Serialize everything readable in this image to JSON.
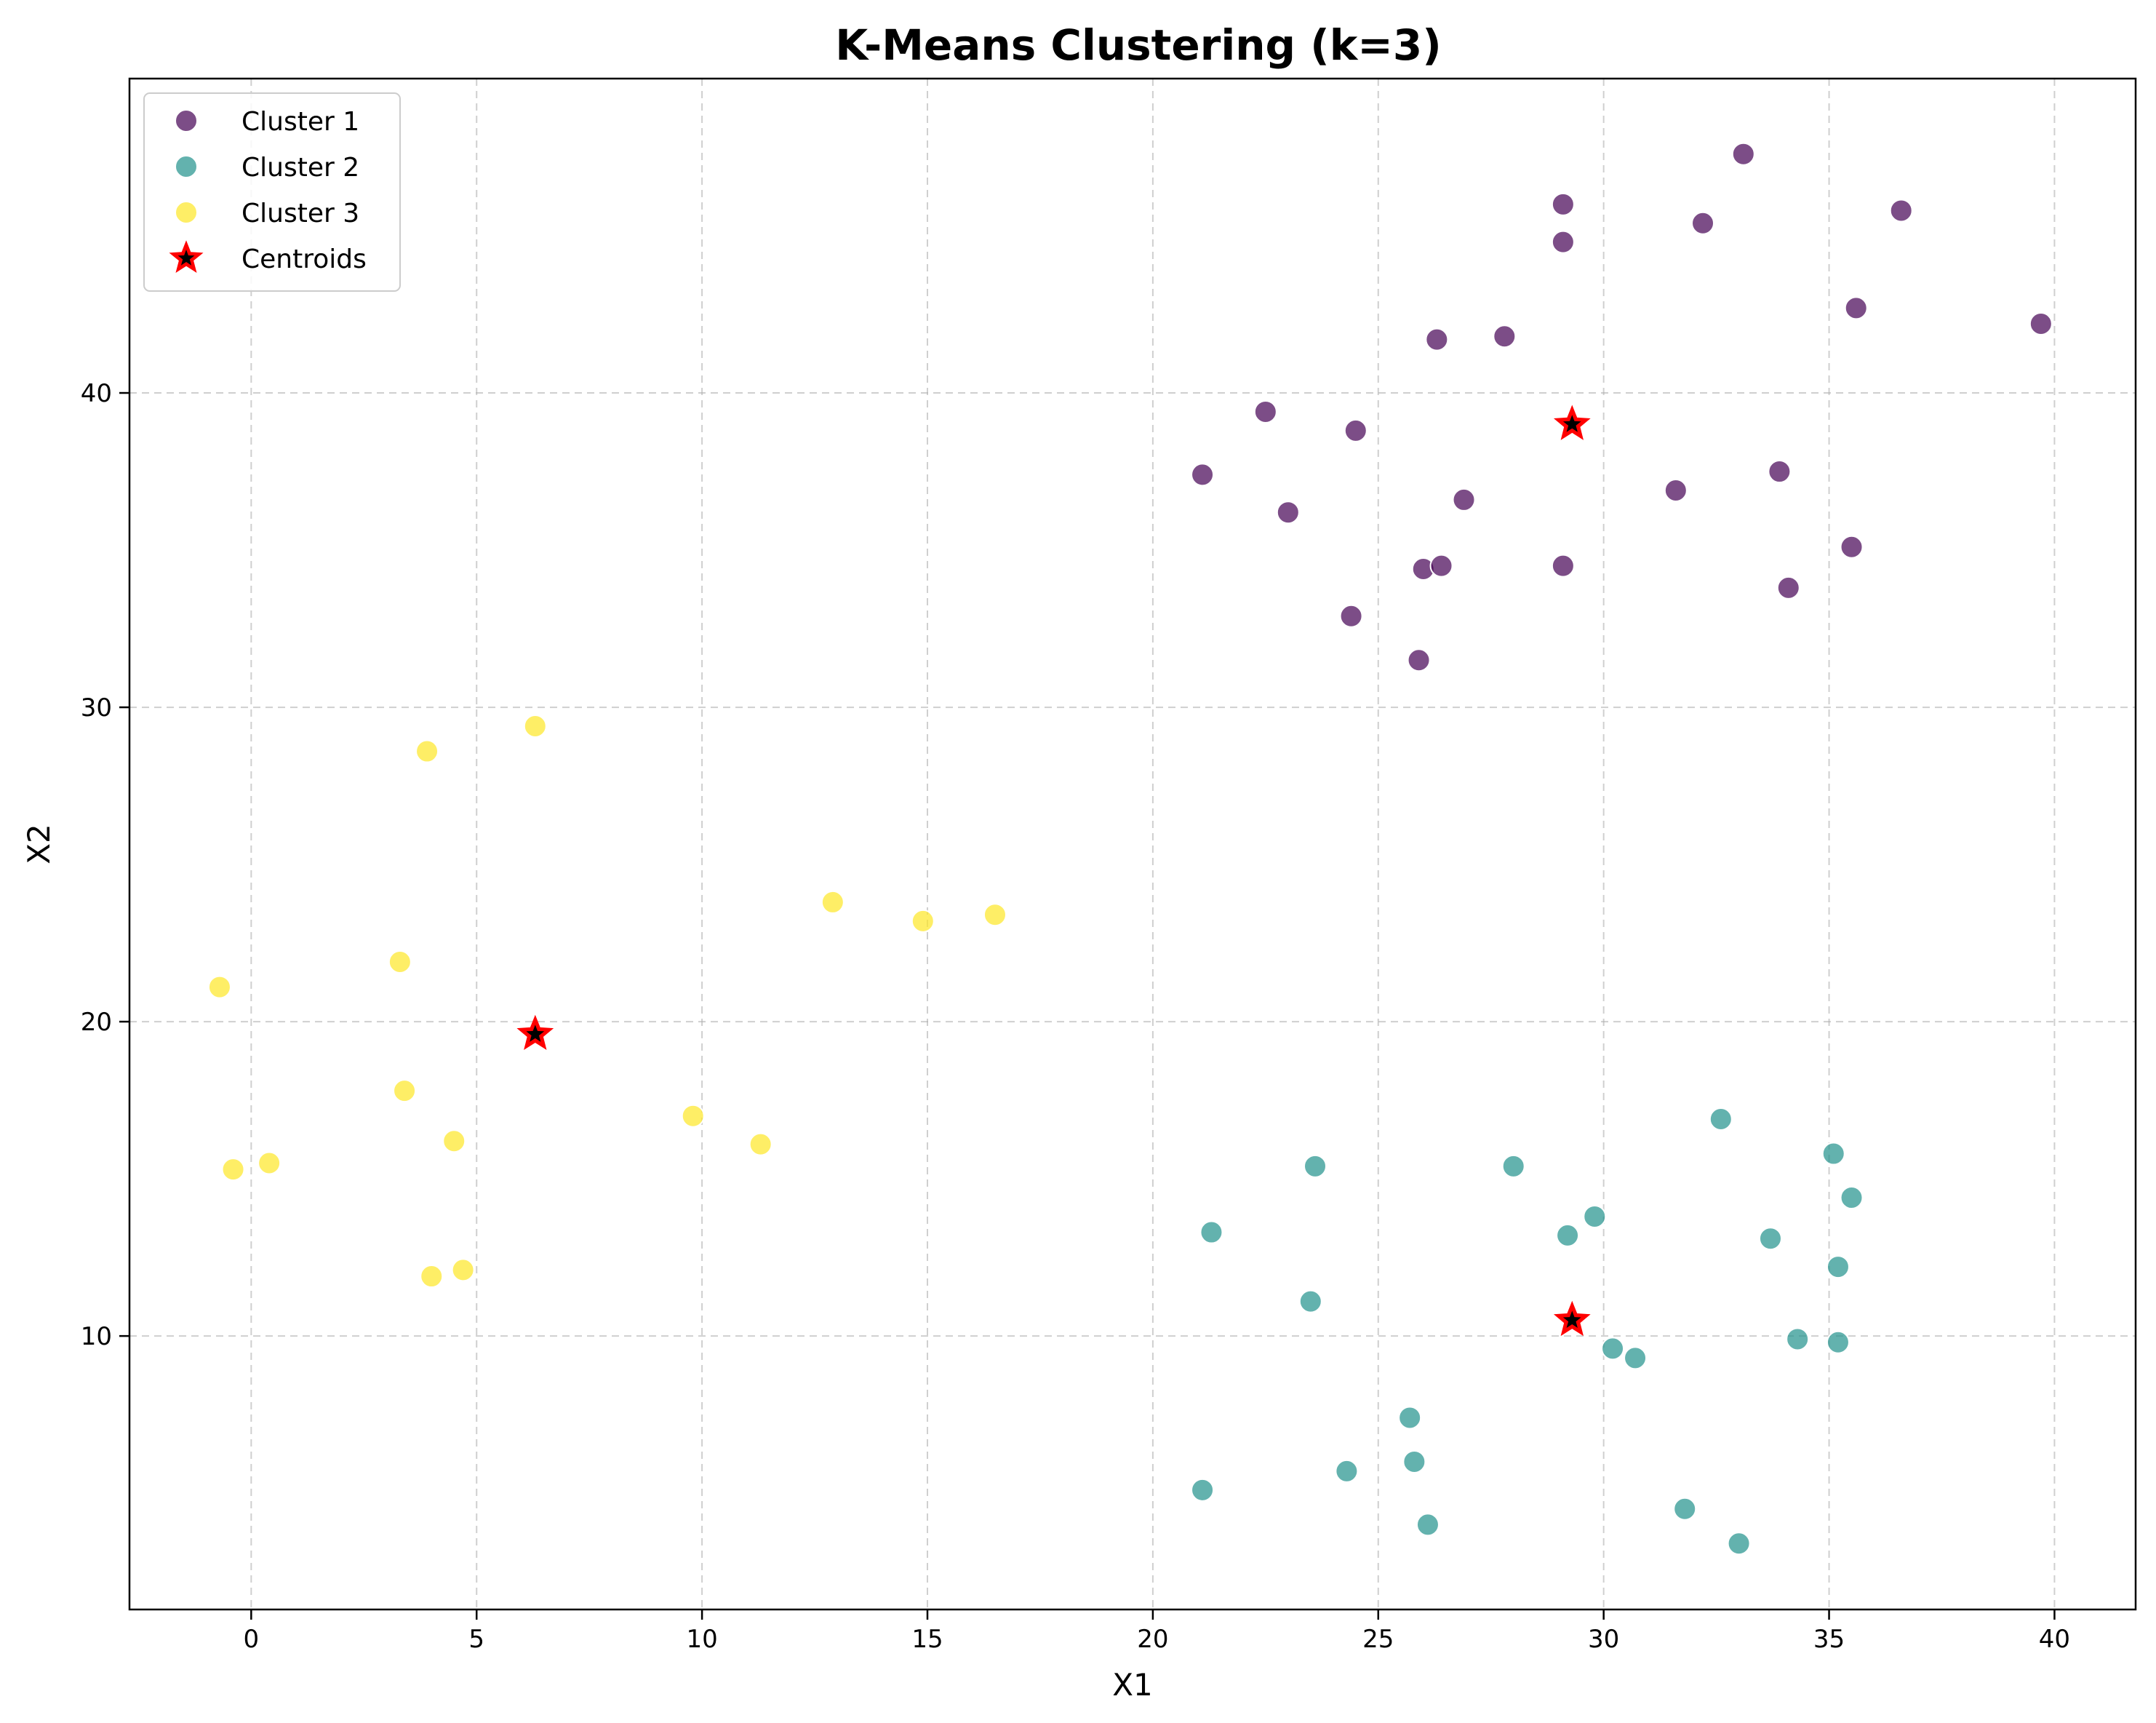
{
  "chart_data": {
    "type": "scatter",
    "title": "K-Means Clustering (k=3)",
    "xlabel": "X1",
    "ylabel": "X2",
    "xlim": [
      -2.7,
      41.8
    ],
    "ylim": [
      1.3,
      50.0
    ],
    "xticks": [
      0,
      5,
      10,
      15,
      20,
      25,
      30,
      35,
      40
    ],
    "yticks": [
      10,
      20,
      30,
      40
    ],
    "grid": true,
    "legend_position": "top-left",
    "series": [
      {
        "name": "Cluster 1",
        "color": "#440154",
        "marker": "circle",
        "points": [
          [
            33.1,
            47.6
          ],
          [
            29.1,
            46.0
          ],
          [
            32.2,
            45.4
          ],
          [
            36.6,
            45.8
          ],
          [
            29.1,
            44.8
          ],
          [
            35.6,
            42.7
          ],
          [
            39.7,
            42.2
          ],
          [
            26.3,
            41.7
          ],
          [
            27.8,
            41.8
          ],
          [
            22.5,
            39.4
          ],
          [
            24.5,
            38.8
          ],
          [
            21.1,
            37.4
          ],
          [
            23.0,
            36.2
          ],
          [
            26.9,
            36.6
          ],
          [
            31.6,
            36.9
          ],
          [
            33.9,
            37.5
          ],
          [
            35.5,
            35.1
          ],
          [
            26.0,
            34.4
          ],
          [
            26.4,
            34.5
          ],
          [
            29.1,
            34.5
          ],
          [
            34.1,
            33.8
          ],
          [
            24.4,
            32.9
          ],
          [
            25.9,
            31.5
          ]
        ]
      },
      {
        "name": "Cluster 2",
        "color": "#21918c",
        "marker": "circle",
        "points": [
          [
            32.6,
            16.9
          ],
          [
            35.1,
            15.8
          ],
          [
            28.0,
            15.4
          ],
          [
            23.6,
            15.4
          ],
          [
            35.5,
            14.4
          ],
          [
            29.8,
            13.8
          ],
          [
            21.3,
            13.3
          ],
          [
            29.2,
            13.2
          ],
          [
            33.7,
            13.1
          ],
          [
            35.2,
            12.2
          ],
          [
            23.5,
            11.1
          ],
          [
            34.3,
            9.9
          ],
          [
            35.2,
            9.8
          ],
          [
            30.2,
            9.6
          ],
          [
            30.7,
            9.3
          ],
          [
            25.7,
            7.4
          ],
          [
            25.8,
            6.0
          ],
          [
            24.3,
            5.7
          ],
          [
            21.1,
            5.1
          ],
          [
            31.8,
            4.5
          ],
          [
            26.1,
            4.0
          ],
          [
            33.0,
            3.4
          ]
        ]
      },
      {
        "name": "Cluster 3",
        "color": "#fde725",
        "marker": "circle",
        "points": [
          [
            6.3,
            29.4
          ],
          [
            3.9,
            28.6
          ],
          [
            12.9,
            23.8
          ],
          [
            14.9,
            23.2
          ],
          [
            16.5,
            23.4
          ],
          [
            3.3,
            21.9
          ],
          [
            -0.7,
            21.1
          ],
          [
            3.4,
            17.8
          ],
          [
            9.8,
            17.0
          ],
          [
            4.5,
            16.2
          ],
          [
            11.3,
            16.1
          ],
          [
            0.4,
            15.5
          ],
          [
            -0.4,
            15.3
          ],
          [
            4.7,
            12.1
          ],
          [
            4.0,
            11.9
          ]
        ]
      },
      {
        "name": "Centroids",
        "color": "#ff0000",
        "marker": "star",
        "points": [
          [
            29.3,
            39.0
          ],
          [
            6.3,
            19.6
          ],
          [
            29.3,
            10.5
          ]
        ]
      }
    ]
  }
}
